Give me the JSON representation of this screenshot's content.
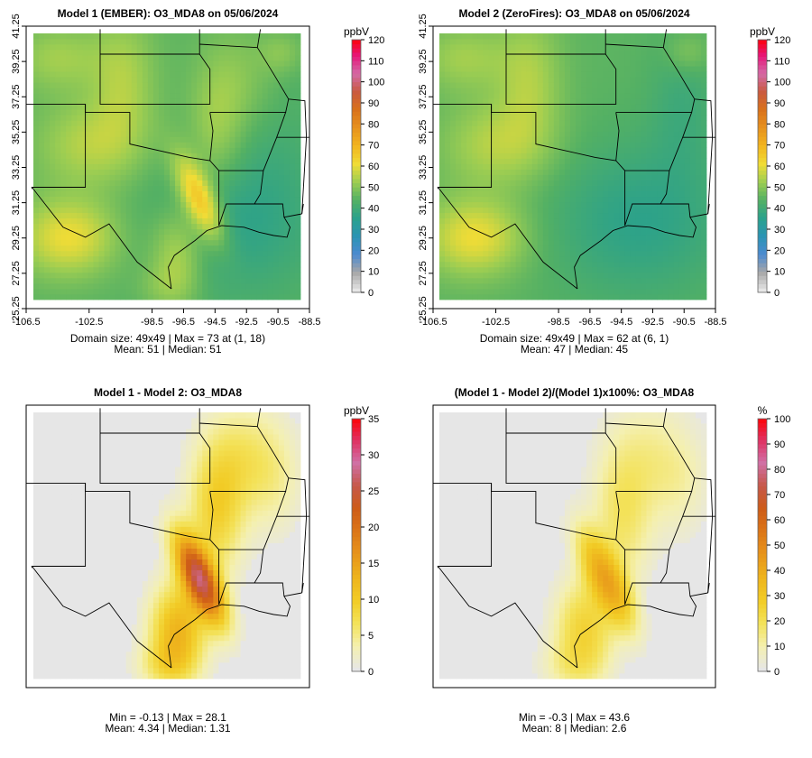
{
  "colorbar_scales": {
    "ozone": [
      "#e6e6e6",
      "#a7a7a7",
      "#4c8ad0",
      "#2b94b4",
      "#2aa18c",
      "#53b064",
      "#9ccd52",
      "#f0dc36",
      "#f2b51f",
      "#e7921e",
      "#d9721a",
      "#c95a3f",
      "#d36ba6",
      "#e6177a",
      "#ff0000"
    ],
    "difference": [
      "#e6e6e6",
      "#f4f0b0",
      "#f3e25a",
      "#f2cc26",
      "#eeb41d",
      "#e7951b",
      "#dc7618",
      "#cd5c18",
      "#c6584a",
      "#d070a6",
      "#e03060",
      "#ff0000"
    ]
  },
  "chart_data": [
    {
      "id": "p1",
      "type": "heatmap",
      "title": "Model 1 (EMBER): O3_MDA8 on 05/06/2024",
      "colorbar_label": "ppbV",
      "colorbar_ticks": [
        "0",
        "10",
        "20",
        "30",
        "40",
        "50",
        "60",
        "70",
        "80",
        "90",
        "100",
        "110",
        "120"
      ],
      "colorbar_range": [
        0,
        120
      ],
      "x_ticks": [
        "-106.5",
        "-102.5",
        "-98.5",
        "-96.5",
        "-94.5",
        "-92.5",
        "-90.5",
        "-88.5"
      ],
      "y_ticks": [
        "25.25",
        "27.25",
        "29.25",
        "31.25",
        "33.25",
        "35.25",
        "37.25",
        "39.25",
        "41.25"
      ],
      "xlim": [
        -106.5,
        -88.5
      ],
      "ylim": [
        25.25,
        41.25
      ],
      "grid": [
        49,
        49
      ],
      "field": "ember",
      "stats_line1": "Domain size: 49x49 | Max = 73 at (1, 18)",
      "stats_line2": "Mean: 51 |  Median: 51",
      "scale": "ozone"
    },
    {
      "id": "p2",
      "type": "heatmap",
      "title": "Model 2 (ZeroFires): O3_MDA8 on 05/06/2024",
      "colorbar_label": "ppbV",
      "colorbar_ticks": [
        "0",
        "10",
        "20",
        "30",
        "40",
        "50",
        "60",
        "70",
        "80",
        "90",
        "100",
        "110",
        "120"
      ],
      "colorbar_range": [
        0,
        120
      ],
      "x_ticks": [
        "-106.5",
        "-102.5",
        "-98.5",
        "-96.5",
        "-94.5",
        "-92.5",
        "-90.5",
        "-88.5"
      ],
      "y_ticks": [
        "25.25",
        "27.25",
        "29.25",
        "31.25",
        "33.25",
        "35.25",
        "37.25",
        "39.25",
        "41.25"
      ],
      "xlim": [
        -106.5,
        -88.5
      ],
      "ylim": [
        25.25,
        41.25
      ],
      "grid": [
        49,
        49
      ],
      "field": "zerofires",
      "stats_line1": "Domain size: 49x49 | Max = 62 at (6, 1)",
      "stats_line2": "Mean: 47 |  Median: 45",
      "scale": "ozone"
    },
    {
      "id": "p3",
      "type": "heatmap",
      "title": "Model 1 - Model 2: O3_MDA8",
      "colorbar_label": "ppbV",
      "colorbar_ticks": [
        "0",
        "5",
        "10",
        "15",
        "20",
        "25",
        "30",
        "35"
      ],
      "colorbar_range": [
        0,
        35
      ],
      "x_ticks": [],
      "y_ticks": [],
      "xlim": [
        -106.5,
        -88.5
      ],
      "ylim": [
        25.25,
        41.25
      ],
      "grid": [
        49,
        49
      ],
      "field": "diff",
      "stats_line1": "Min = -0.13 | Max = 28.1",
      "stats_line2": "Mean: 4.34 |  Median: 1.31",
      "scale": "difference"
    },
    {
      "id": "p4",
      "type": "heatmap",
      "title": "(Model 1 - Model 2)/(Model 1)x100%: O3_MDA8",
      "colorbar_label": "%",
      "colorbar_ticks": [
        "0",
        "10",
        "20",
        "30",
        "40",
        "50",
        "60",
        "70",
        "80",
        "90",
        "100"
      ],
      "colorbar_range": [
        0,
        100
      ],
      "x_ticks": [],
      "y_ticks": [],
      "xlim": [
        -106.5,
        -88.5
      ],
      "ylim": [
        25.25,
        41.25
      ],
      "grid": [
        49,
        49
      ],
      "field": "pct",
      "stats_line1": "Min = -0.3 | Max = 43.6",
      "stats_line2": "Mean: 8 |  Median: 2.6",
      "scale": "difference"
    }
  ]
}
